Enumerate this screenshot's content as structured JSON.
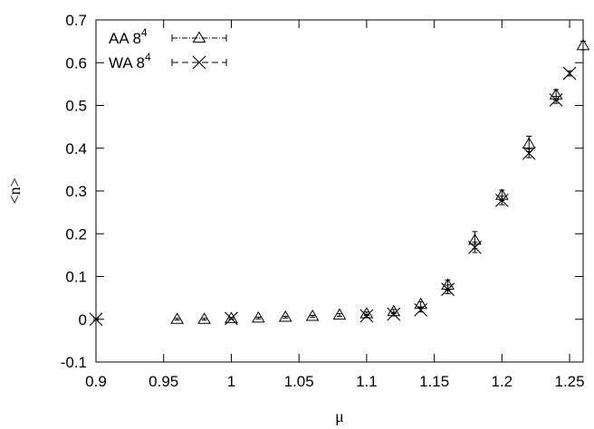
{
  "chart_data": {
    "type": "scatter",
    "xlabel": "μ",
    "ylabel": "<n>",
    "xlim": [
      0.9,
      1.26
    ],
    "ylim": [
      -0.1,
      0.7
    ],
    "xticks": [
      "0.9",
      "0.95",
      "1",
      "1.05",
      "1.1",
      "1.15",
      "1.2",
      "1.25"
    ],
    "yticks": [
      "-0.1",
      "0",
      "0.1",
      "0.2",
      "0.3",
      "0.4",
      "0.5",
      "0.6",
      "0.7"
    ],
    "grid": false,
    "legend_position": "top-left",
    "series": [
      {
        "name": "AA 8",
        "name_superscript": "4",
        "marker": "triangle",
        "x": [
          0.96,
          0.98,
          1.0,
          1.02,
          1.04,
          1.06,
          1.08,
          1.1,
          1.12,
          1.14,
          1.16,
          1.18,
          1.2,
          1.22,
          1.24,
          1.26
        ],
        "y": [
          0.0,
          0.0,
          0.002,
          0.003,
          0.005,
          0.007,
          0.01,
          0.013,
          0.018,
          0.035,
          0.08,
          0.185,
          0.29,
          0.41,
          0.525,
          0.64
        ],
        "err": [
          0.002,
          0.002,
          0.002,
          0.002,
          0.002,
          0.002,
          0.003,
          0.004,
          0.005,
          0.006,
          0.012,
          0.02,
          0.012,
          0.018,
          0.012,
          0.01
        ]
      },
      {
        "name": "WA 8",
        "name_superscript": "4",
        "marker": "x",
        "x": [
          0.9,
          1.0,
          1.1,
          1.12,
          1.14,
          1.16,
          1.18,
          1.2,
          1.22,
          1.24,
          1.25
        ],
        "y": [
          0.0,
          0.002,
          0.008,
          0.012,
          0.022,
          0.07,
          0.168,
          0.278,
          0.388,
          0.513,
          0.575
        ],
        "err": [
          0.002,
          0.002,
          0.003,
          0.004,
          0.005,
          0.01,
          0.012,
          0.01,
          0.01,
          0.008,
          0.006
        ]
      }
    ]
  }
}
